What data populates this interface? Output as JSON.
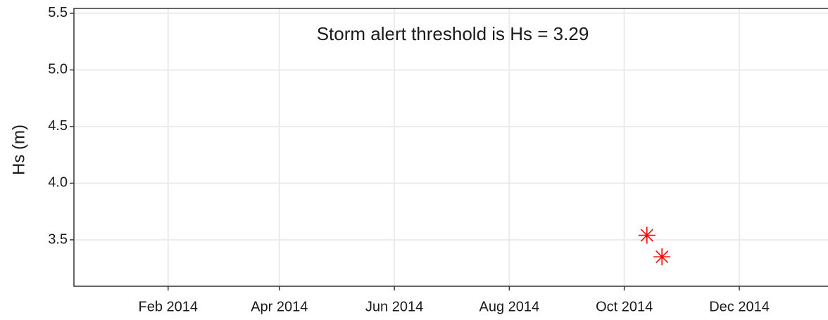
{
  "chart_data": {
    "type": "scatter",
    "annotation": "Storm alert threshold is Hs = 3.29",
    "y_label": "Hs (m)",
    "x": [
      2014.7808,
      2014.8027
    ],
    "values": [
      3.54,
      3.35
    ],
    "color": "#ff0000",
    "marker": "asterisk",
    "xlim": [
      2013.948,
      2015.044
    ],
    "xticks": [
      {
        "value": 2014.0849,
        "label": "Feb 2014"
      },
      {
        "value": 2014.2466,
        "label": "Apr 2014"
      },
      {
        "value": 2014.4137,
        "label": "Jun 2014"
      },
      {
        "value": 2014.5808,
        "label": "Aug 2014"
      },
      {
        "value": 2014.7479,
        "label": "Oct 2014"
      },
      {
        "value": 2014.9151,
        "label": "Dec 2014"
      }
    ],
    "ylim": [
      3.09,
      5.543
    ],
    "yticks": [
      {
        "value": 3.5,
        "label": "3.5"
      },
      {
        "value": 4,
        "label": "4.0"
      },
      {
        "value": 4.5,
        "label": "4.5"
      },
      {
        "value": 5,
        "label": "5.0"
      },
      {
        "value": 5.5,
        "label": "5.5"
      }
    ],
    "grid": true
  }
}
